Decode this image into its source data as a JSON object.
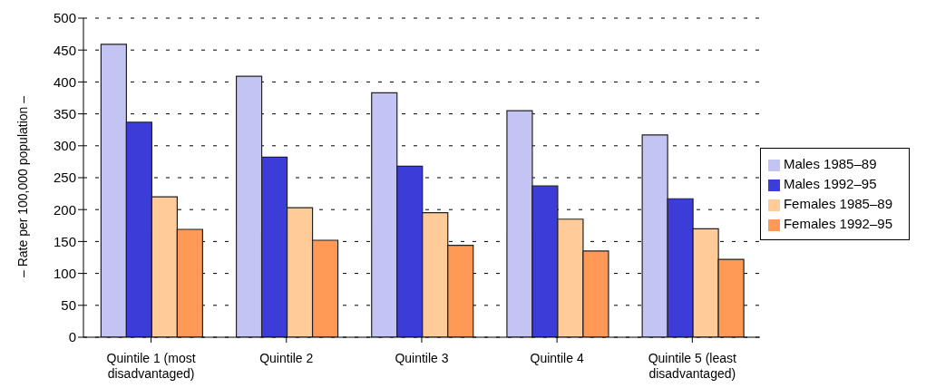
{
  "chart_data": {
    "type": "bar",
    "ylabel": "– Rate per 100,000 population –",
    "categories": [
      "Quintile 1 (most disadvantaged)",
      "Quintile 2",
      "Quintile 3",
      "Quintile 4",
      "Quintile 5 (least disadvantaged)"
    ],
    "series": [
      {
        "name": "Males 1985–89",
        "color": "#c4c4f4",
        "values": [
          459,
          409,
          383,
          355,
          317
        ]
      },
      {
        "name": "Males 1992–95",
        "color": "#3c3cd8",
        "values": [
          337,
          282,
          268,
          237,
          217
        ]
      },
      {
        "name": "Females 1985–89",
        "color": "#ffcc99",
        "values": [
          220,
          203,
          195,
          185,
          170
        ]
      },
      {
        "name": "Females 1992–95",
        "color": "#ff9955",
        "values": [
          169,
          152,
          144,
          135,
          122
        ]
      }
    ],
    "ylim": [
      0,
      500
    ],
    "yticks": [
      0,
      50,
      100,
      150,
      200,
      250,
      300,
      350,
      400,
      450,
      500
    ],
    "grid": "y",
    "legend": "right"
  }
}
